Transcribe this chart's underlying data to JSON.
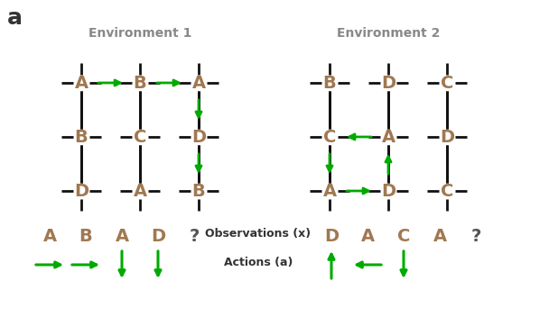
{
  "bg_color": "#ffffff",
  "label_color": "#a07850",
  "arrow_color": "#00aa00",
  "line_color": "#111111",
  "title_color": "#888888",
  "panel_label_color": "#333333",
  "env1_title": "Environment 1",
  "env2_title": "Environment 2",
  "panel_label": "a",
  "env1_grid": [
    [
      "A",
      "B",
      "A"
    ],
    [
      "B",
      "C",
      "D"
    ],
    [
      "D",
      "A",
      "B"
    ]
  ],
  "env2_grid": [
    [
      "B",
      "D",
      "C"
    ],
    [
      "C",
      "A",
      "D"
    ],
    [
      "A",
      "D",
      "C"
    ]
  ],
  "obs1": [
    "A",
    "B",
    "A",
    "D",
    "?"
  ],
  "obs2": [
    "D",
    "A",
    "C",
    "A",
    "?"
  ],
  "obs_label": "Observations (x)",
  "act_label": "Actions (a)"
}
